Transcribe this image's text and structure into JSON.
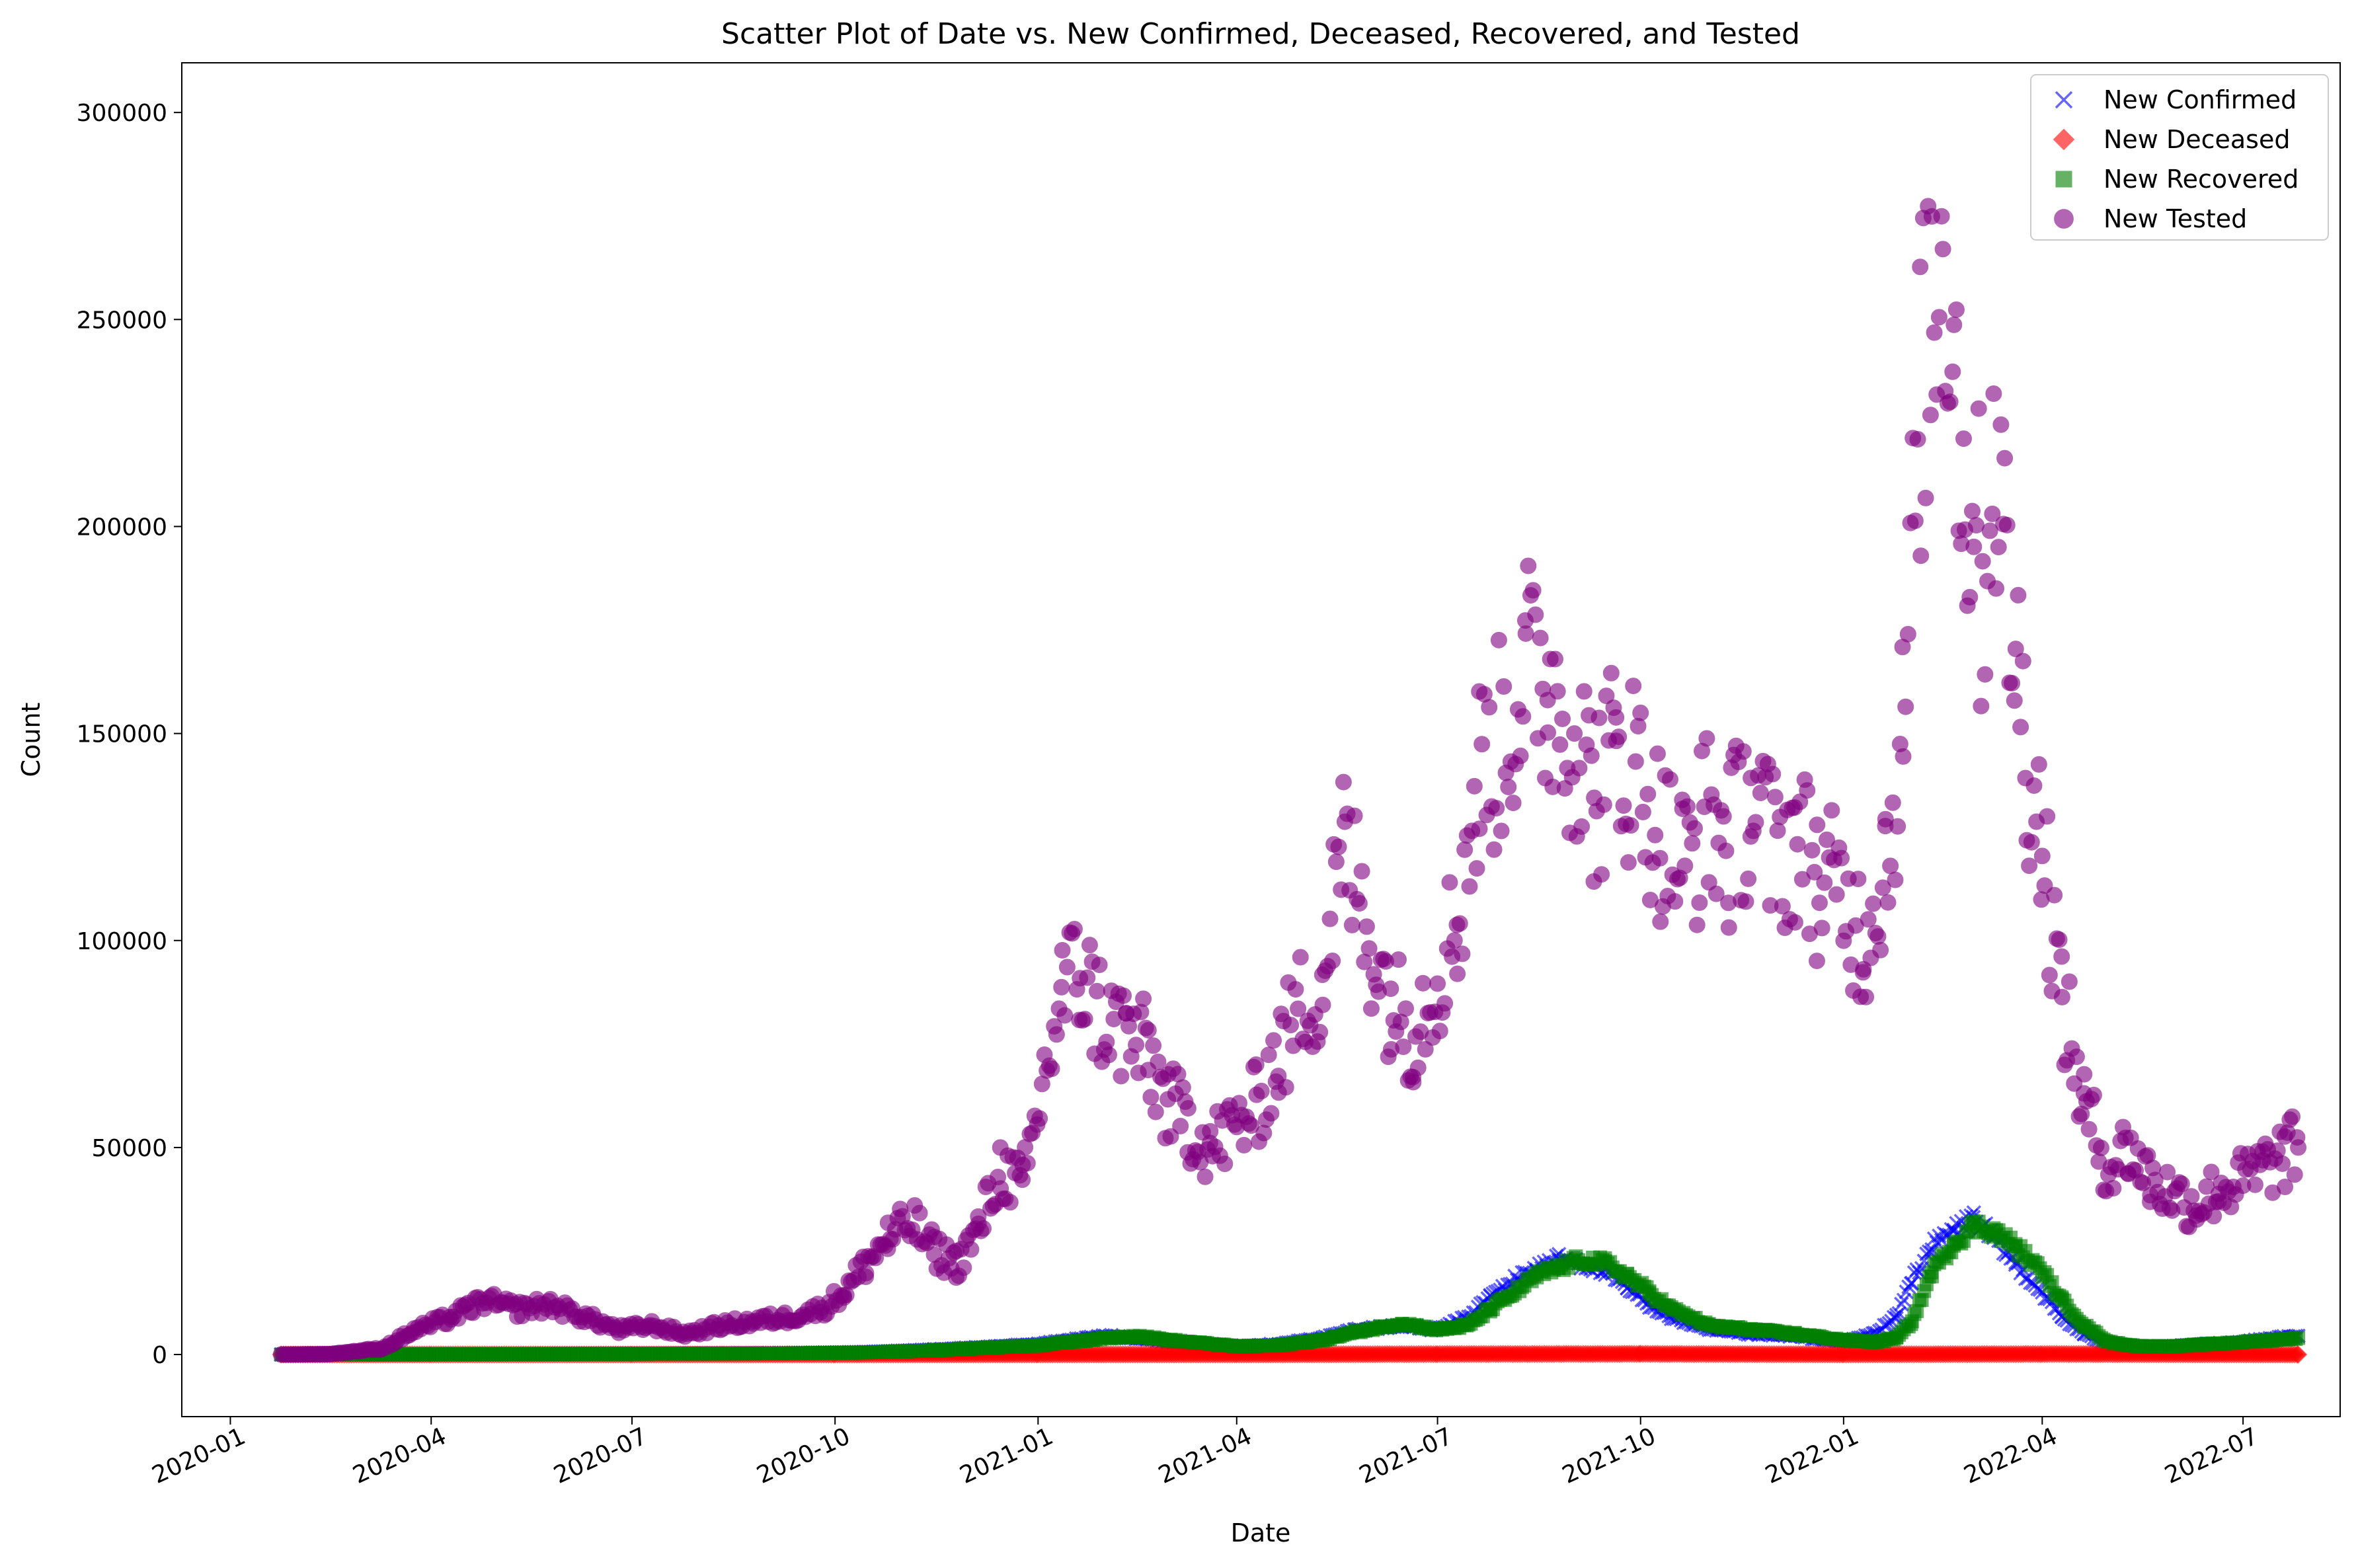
{
  "chart_data": {
    "type": "scatter",
    "title": "Scatter Plot of Date vs. New Confirmed, Deceased, Recovered, and Tested",
    "xlabel": "Date",
    "ylabel": "Count",
    "xlim": [
      "2019-12-10",
      "2022-08-14"
    ],
    "ylim": [
      -15000,
      312000
    ],
    "x_ticks": [
      "2020-01",
      "2020-04",
      "2020-07",
      "2020-10",
      "2021-01",
      "2021-04",
      "2021-07",
      "2021-10",
      "2022-01",
      "2022-04",
      "2022-07"
    ],
    "x_tick_dates": [
      "2020-01-01",
      "2020-04-01",
      "2020-07-01",
      "2020-10-01",
      "2021-01-01",
      "2021-04-01",
      "2021-07-01",
      "2021-10-01",
      "2022-01-01",
      "2022-04-01",
      "2022-07-01"
    ],
    "y_ticks": [
      "0",
      "50000",
      "100000",
      "150000",
      "200000",
      "250000",
      "300000"
    ],
    "y_tick_values": [
      0,
      50000,
      100000,
      150000,
      200000,
      250000,
      300000
    ],
    "grid": false,
    "legend_position": "top-right",
    "series": [
      {
        "name": "New Confirmed",
        "marker": "x",
        "color": "#0000ff",
        "x": [
          "2020-01-24",
          "2020-03-01",
          "2020-05-01",
          "2020-07-01",
          "2020-09-01",
          "2020-10-15",
          "2020-11-15",
          "2020-12-15",
          "2021-01-01",
          "2021-01-15",
          "2021-02-01",
          "2021-02-15",
          "2021-03-01",
          "2021-04-01",
          "2021-04-20",
          "2021-05-10",
          "2021-05-25",
          "2021-06-15",
          "2021-07-01",
          "2021-07-15",
          "2021-07-25",
          "2021-08-05",
          "2021-08-15",
          "2021-08-25",
          "2021-09-05",
          "2021-09-15",
          "2021-09-25",
          "2021-10-05",
          "2021-10-15",
          "2021-11-01",
          "2021-11-20",
          "2021-12-10",
          "2022-01-01",
          "2022-01-15",
          "2022-01-25",
          "2022-02-01",
          "2022-02-10",
          "2022-02-20",
          "2022-03-01",
          "2022-03-10",
          "2022-03-20",
          "2022-04-01",
          "2022-04-10",
          "2022-04-20",
          "2022-05-01",
          "2022-05-15",
          "2022-06-01",
          "2022-06-15",
          "2022-07-01",
          "2022-07-15",
          "2022-07-26"
        ],
        "y": [
          0,
          20,
          100,
          200,
          300,
          600,
          1200,
          2000,
          2500,
          3500,
          4500,
          4000,
          3000,
          2000,
          2500,
          4000,
          6000,
          7000,
          6000,
          9000,
          14000,
          18000,
          21000,
          23000,
          22000,
          20000,
          16000,
          12000,
          9000,
          6000,
          5000,
          4500,
          3000,
          5000,
          9000,
          18000,
          26000,
          30000,
          33000,
          28000,
          22000,
          15000,
          9000,
          5000,
          2500,
          1500,
          2000,
          2500,
          3000,
          4000,
          4500
        ]
      },
      {
        "name": "New Deceased",
        "marker": "D",
        "color": "#ff0000",
        "x": [
          "2020-01-24",
          "2020-04-01",
          "2020-07-01",
          "2020-10-01",
          "2021-01-01",
          "2021-04-01",
          "2021-07-01",
          "2021-10-01",
          "2022-01-01",
          "2022-04-01",
          "2022-07-26"
        ],
        "y": [
          0,
          5,
          3,
          10,
          30,
          20,
          100,
          150,
          30,
          120,
          10
        ]
      },
      {
        "name": "New Recovered",
        "marker": "s",
        "color": "#008000",
        "x": [
          "2020-01-24",
          "2020-03-01",
          "2020-05-01",
          "2020-07-01",
          "2020-09-01",
          "2020-10-15",
          "2020-11-15",
          "2020-12-15",
          "2021-01-01",
          "2021-01-15",
          "2021-02-01",
          "2021-02-15",
          "2021-03-01",
          "2021-04-01",
          "2021-04-20",
          "2021-05-10",
          "2021-05-25",
          "2021-06-15",
          "2021-07-01",
          "2021-07-15",
          "2021-07-25",
          "2021-08-05",
          "2021-08-15",
          "2021-08-25",
          "2021-09-05",
          "2021-09-15",
          "2021-09-25",
          "2021-10-05",
          "2021-10-15",
          "2021-11-01",
          "2021-11-20",
          "2021-12-10",
          "2022-01-01",
          "2022-01-15",
          "2022-01-25",
          "2022-02-01",
          "2022-02-10",
          "2022-02-20",
          "2022-03-01",
          "2022-03-10",
          "2022-03-20",
          "2022-04-01",
          "2022-04-10",
          "2022-04-20",
          "2022-05-01",
          "2022-05-15",
          "2022-06-01",
          "2022-06-15",
          "2022-07-01",
          "2022-07-15",
          "2022-07-26"
        ],
        "y": [
          0,
          10,
          80,
          150,
          250,
          500,
          1000,
          1800,
          2200,
          3000,
          4000,
          4500,
          3500,
          2000,
          2200,
          3500,
          5500,
          7500,
          6000,
          7000,
          11000,
          15000,
          19000,
          21000,
          23000,
          22000,
          19000,
          15000,
          11000,
          7000,
          6000,
          5000,
          3500,
          3000,
          4000,
          8000,
          20000,
          27000,
          31000,
          30000,
          26000,
          20000,
          13000,
          7000,
          3000,
          2000,
          2000,
          2500,
          3000,
          3500,
          4000
        ]
      },
      {
        "name": "New Tested",
        "marker": "o",
        "color": "#800080",
        "x": [
          "2020-01-24",
          "2020-02-15",
          "2020-03-10",
          "2020-03-25",
          "2020-04-10",
          "2020-04-25",
          "2020-05-10",
          "2020-05-25",
          "2020-06-10",
          "2020-06-25",
          "2020-07-10",
          "2020-07-25",
          "2020-08-10",
          "2020-08-25",
          "2020-09-10",
          "2020-09-25",
          "2020-10-05",
          "2020-10-15",
          "2020-10-25",
          "2020-11-05",
          "2020-11-15",
          "2020-11-25",
          "2020-12-05",
          "2020-12-15",
          "2020-12-25",
          "2021-01-05",
          "2021-01-12",
          "2021-01-20",
          "2021-02-01",
          "2021-02-10",
          "2021-02-20",
          "2021-03-01",
          "2021-03-10",
          "2021-03-20",
          "2021-04-01",
          "2021-04-10",
          "2021-04-20",
          "2021-05-01",
          "2021-05-10",
          "2021-05-15",
          "2021-05-20",
          "2021-06-01",
          "2021-06-10",
          "2021-06-20",
          "2021-07-01",
          "2021-07-10",
          "2021-07-20",
          "2021-08-01",
          "2021-08-10",
          "2021-08-20",
          "2021-09-01",
          "2021-09-10",
          "2021-09-20",
          "2021-10-01",
          "2021-10-10",
          "2021-10-20",
          "2021-11-01",
          "2021-11-10",
          "2021-11-20",
          "2021-12-01",
          "2021-12-10",
          "2021-12-20",
          "2022-01-01",
          "2022-01-10",
          "2022-01-20",
          "2022-01-28",
          "2022-02-05",
          "2022-02-10",
          "2022-02-15",
          "2022-02-20",
          "2022-02-25",
          "2022-03-01",
          "2022-03-05",
          "2022-03-10",
          "2022-03-15",
          "2022-03-20",
          "2022-03-25",
          "2022-04-01",
          "2022-04-10",
          "2022-04-20",
          "2022-05-01",
          "2022-05-10",
          "2022-05-20",
          "2022-06-01",
          "2022-06-10",
          "2022-06-20",
          "2022-07-01",
          "2022-07-10",
          "2022-07-20",
          "2022-07-26"
        ],
        "y": [
          0,
          100,
          1500,
          6000,
          9000,
          13000,
          11000,
          12000,
          9000,
          6000,
          7000,
          5000,
          7000,
          8000,
          9000,
          11000,
          15000,
          22000,
          28000,
          32000,
          25000,
          22000,
          30000,
          45000,
          40000,
          70000,
          88000,
          92000,
          80000,
          78000,
          72000,
          60000,
          56000,
          50000,
          55000,
          60000,
          72000,
          85000,
          90000,
          110000,
          122000,
          100000,
          85000,
          78000,
          92000,
          105000,
          140000,
          150000,
          165000,
          162000,
          150000,
          135000,
          145000,
          140000,
          125000,
          118000,
          130000,
          122000,
          135000,
          120000,
          125000,
          115000,
          110000,
          100000,
          120000,
          150000,
          230000,
          255000,
          270000,
          250000,
          200000,
          215000,
          180000,
          225000,
          190000,
          170000,
          145000,
          125000,
          85000,
          60000,
          45000,
          50000,
          42000,
          38000,
          36000,
          40000,
          42000,
          45000,
          48000,
          50000
        ]
      }
    ]
  }
}
